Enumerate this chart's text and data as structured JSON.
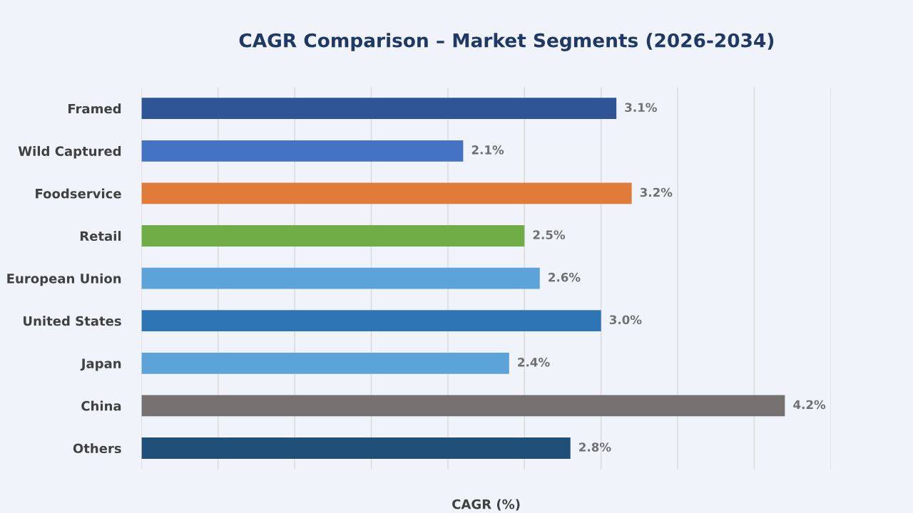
{
  "chart_data": {
    "type": "bar",
    "orientation": "horizontal",
    "title": "CAGR Comparison – Market Segments (2026-2034)",
    "xlabel": "CAGR (%)",
    "categories": [
      "Framed",
      "Wild Captured",
      "Foodservice",
      "Retail",
      "European Union",
      "United States",
      "Japan",
      "China",
      "Others"
    ],
    "values": [
      3.1,
      2.1,
      3.2,
      2.5,
      2.6,
      3.0,
      2.4,
      4.2,
      2.8
    ],
    "colors": [
      "#2f5597",
      "#4472c4",
      "#e07b39",
      "#70ad47",
      "#5ba3d9",
      "#2e75b6",
      "#5ba3d9",
      "#767171",
      "#1f4e79"
    ],
    "value_labels": [
      "3.1%",
      "2.1%",
      "3.2%",
      "2.5%",
      "2.6%",
      "3.0%",
      "2.4%",
      "4.2%",
      "2.8%"
    ],
    "xlim": [
      0,
      4.5
    ],
    "xticks": [
      {
        "value": 0,
        "label": null
      },
      {
        "value": 0.5,
        "label": null
      },
      {
        "value": 1,
        "label": null
      },
      {
        "value": 1.5,
        "label": null
      },
      {
        "value": 2,
        "label": null
      },
      {
        "value": 2.5,
        "label": null
      },
      {
        "value": 3,
        "label": null
      },
      {
        "value": 3.5,
        "label": null
      },
      {
        "value": 4,
        "label": null
      },
      {
        "value": 4.5,
        "label": null
      }
    ],
    "grid": "x",
    "tick_labels": "y"
  }
}
